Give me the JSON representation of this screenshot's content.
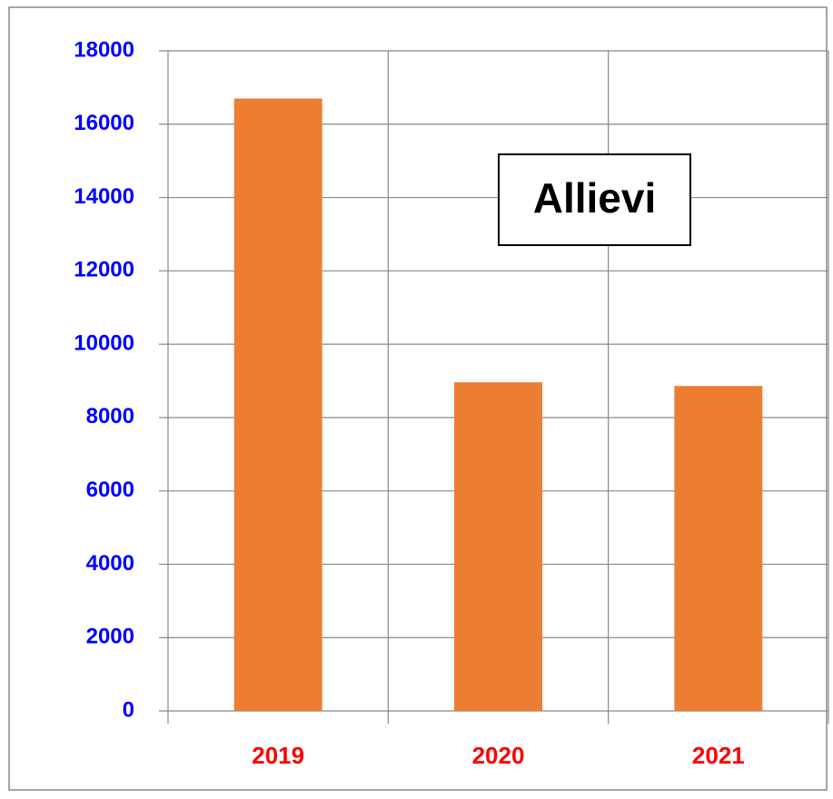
{
  "chart_data": {
    "type": "bar",
    "annotation": "Allievi",
    "categories": [
      "2019",
      "2020",
      "2021"
    ],
    "values": [
      16700,
      8960,
      8860
    ],
    "color": "#ed7d31",
    "ylim": [
      0,
      18000
    ],
    "yticks": [
      0,
      2000,
      4000,
      6000,
      8000,
      10000,
      12000,
      14000,
      16000,
      18000
    ],
    "grid": true,
    "ytick_color": "#0000ff",
    "xtick_color": "#ff0000"
  }
}
